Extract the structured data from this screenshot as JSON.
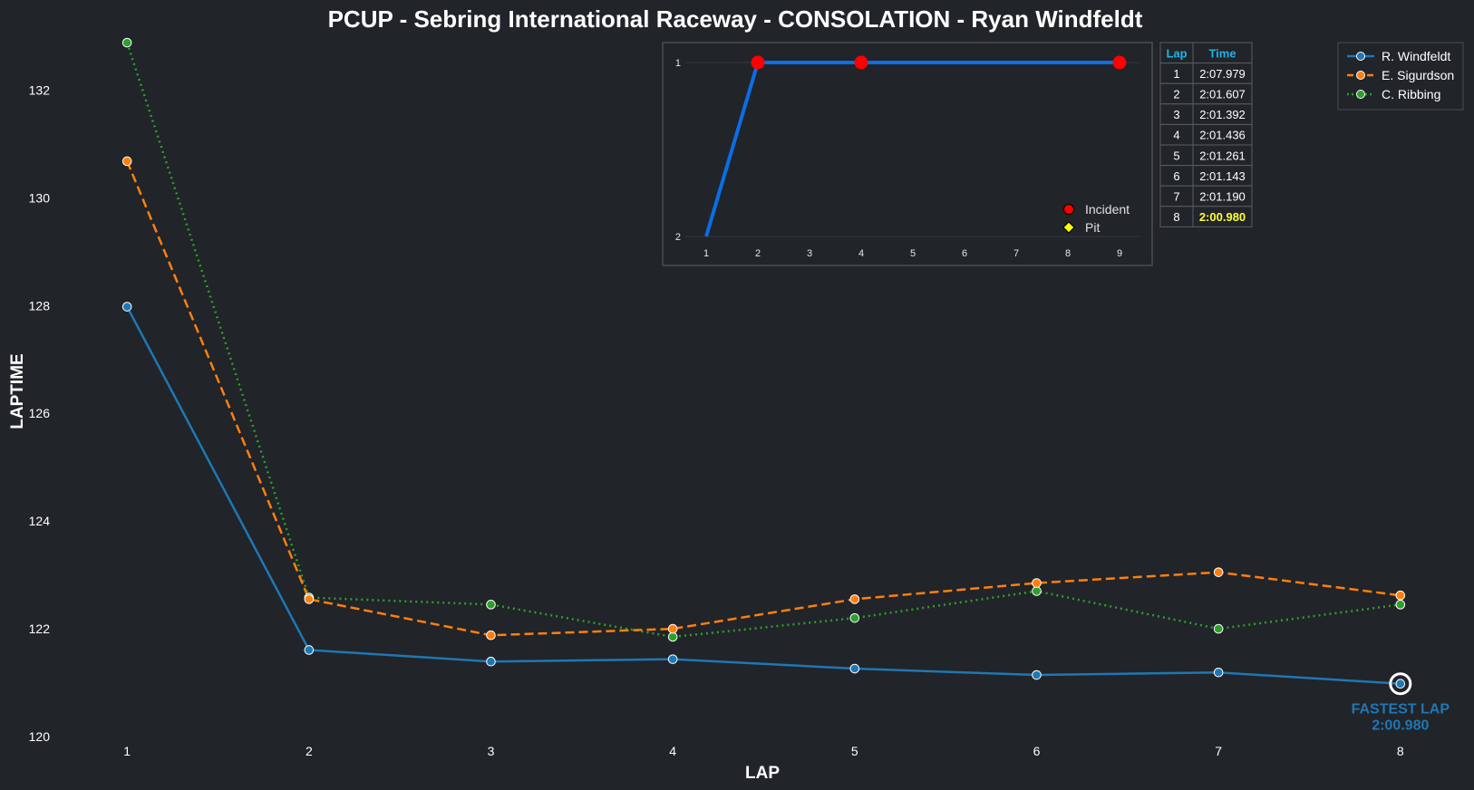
{
  "colors": {
    "background": "#212429",
    "series_windfeldt": "#1f77b4",
    "series_sigurdson": "#ff7f0e",
    "series_ribbing": "#2ca02c",
    "position_line": "#0a6ee6",
    "incident": "#ff0000",
    "pit": "#ffff00",
    "table_header": "#1fb4e6",
    "fastest_time": "#ffff33"
  },
  "chart_data": [
    {
      "type": "line",
      "title": "PCUP - Sebring International Raceway - CONSOLATION - Ryan Windfeldt",
      "xlabel": "LAP",
      "ylabel": "LAPTIME",
      "x": [
        1,
        2,
        3,
        4,
        5,
        6,
        7,
        8
      ],
      "xlim": [
        0.7,
        8.3
      ],
      "ylim": [
        120,
        133
      ],
      "yticks": [
        120,
        122,
        124,
        126,
        128,
        130,
        132
      ],
      "grid": false,
      "legend_position": "top-right",
      "series": [
        {
          "name": "R. Windfeldt",
          "style": "solid",
          "values": [
            127.979,
            121.607,
            121.392,
            121.436,
            121.261,
            121.143,
            121.19,
            120.98
          ]
        },
        {
          "name": "E. Sigurdson",
          "style": "dashed",
          "values": [
            130.68,
            122.55,
            121.88,
            122.0,
            122.55,
            122.85,
            123.05,
            122.62
          ]
        },
        {
          "name": "C. Ribbing",
          "style": "dotted",
          "values": [
            132.88,
            122.58,
            122.45,
            121.85,
            122.2,
            122.7,
            122.0,
            122.45
          ]
        }
      ],
      "annotation": {
        "label": "FASTEST LAP",
        "value": "2:00.980",
        "lap": 8,
        "laptime": 120.98
      }
    },
    {
      "type": "line",
      "title": "",
      "x": [
        1,
        2,
        3,
        4,
        5,
        6,
        7,
        8,
        9
      ],
      "xticks": [
        1,
        2,
        3,
        4,
        5,
        6,
        7,
        8,
        9
      ],
      "yticks": [
        1,
        2
      ],
      "ylim": [
        2,
        1
      ],
      "series": [
        {
          "name": "",
          "values": [
            2,
            1,
            1,
            1,
            1,
            1,
            1,
            1,
            1
          ]
        }
      ],
      "incident_laps": [
        2,
        4,
        9
      ],
      "pit_laps": [],
      "legend": [
        {
          "label": "Incident",
          "marker": "circle"
        },
        {
          "label": "Pit",
          "marker": "diamond"
        }
      ]
    },
    {
      "type": "table",
      "columns": [
        "Lap",
        "Time"
      ],
      "rows": [
        [
          "1",
          "2:07.979"
        ],
        [
          "2",
          "2:01.607"
        ],
        [
          "3",
          "2:01.392"
        ],
        [
          "4",
          "2:01.436"
        ],
        [
          "5",
          "2:01.261"
        ],
        [
          "6",
          "2:01.143"
        ],
        [
          "7",
          "2:01.190"
        ],
        [
          "8",
          "2:00.980"
        ]
      ],
      "highlight_row": 7
    }
  ]
}
